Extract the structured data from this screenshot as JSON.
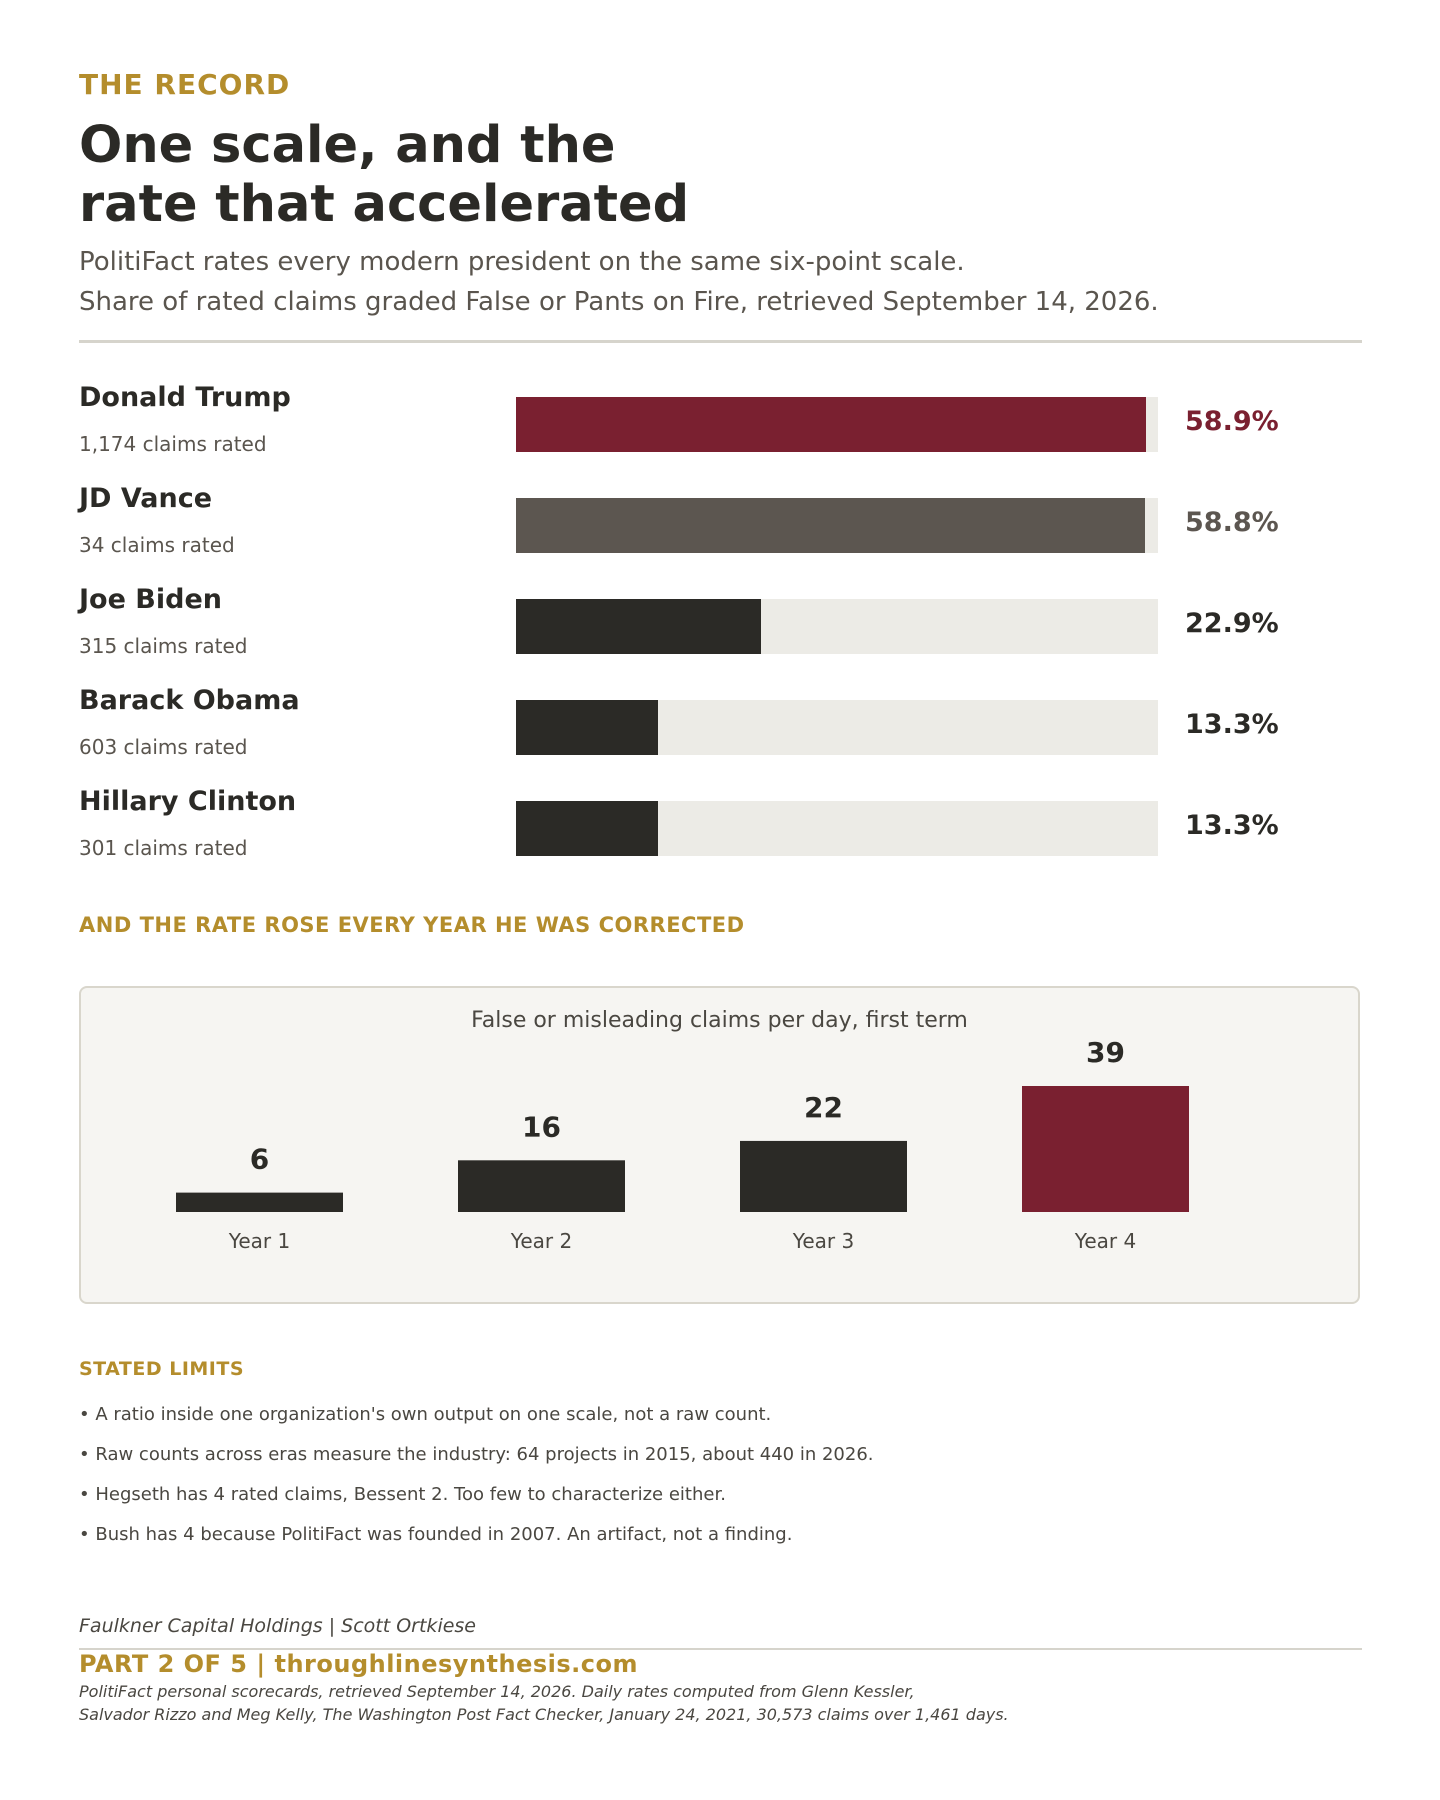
{
  "header": {
    "kicker": "THE RECORD",
    "title_line1": "One scale, and the",
    "title_line2": "rate that accelerated",
    "subtitle_line1": "PolitiFact rates every modern president on the same six-point scale.",
    "subtitle_line2": "Share of rated claims graded False or Pants on Fire, retrieved September 14, 2026."
  },
  "colors": {
    "accent_red": "#7a2030",
    "gray_bar": "#5c5650",
    "dark_bar": "#2b2a26",
    "track": "#ecebe6",
    "gold": "#b48d2c"
  },
  "chart_data": [
    {
      "type": "bar",
      "orientation": "horizontal",
      "title": "",
      "xlim": [
        0,
        60
      ],
      "categories": [
        "Donald Trump",
        "JD Vance",
        "Joe Biden",
        "Barack Obama",
        "Hillary Clinton"
      ],
      "values": [
        58.9,
        58.8,
        22.9,
        13.3,
        13.3
      ],
      "value_labels": [
        "58.9%",
        "58.8%",
        "22.9%",
        "13.3%",
        "13.3%"
      ],
      "sublabels": [
        "1,174 claims rated",
        "34 claims rated",
        "315 claims rated",
        "603 claims rated",
        "301 claims rated"
      ],
      "bar_colors": [
        "#7a2030",
        "#5c5650",
        "#2b2a26",
        "#2b2a26",
        "#2b2a26"
      ],
      "label_colors": [
        "#7a2030",
        "#5c5650",
        "#2b2a26",
        "#2b2a26",
        "#2b2a26"
      ]
    },
    {
      "type": "bar",
      "title": "False or misleading claims per day, first term",
      "categories": [
        "Year 1",
        "Year 2",
        "Year 3",
        "Year 4"
      ],
      "values": [
        6,
        16,
        22,
        39
      ],
      "ylim": [
        0,
        39
      ],
      "bar_colors": [
        "#2b2a26",
        "#2b2a26",
        "#2b2a26",
        "#7a2030"
      ],
      "grid": false
    }
  ],
  "section": {
    "heading": "AND THE RATE ROSE EVERY YEAR HE WAS CORRECTED"
  },
  "limits": {
    "heading": "STATED LIMITS",
    "items": [
      "• A ratio inside one organization's own output on one scale, not a raw count.",
      "• Raw counts across eras measure the industry: 64 projects in 2015, about 440 in 2026.",
      "• Hegseth has 4 rated claims, Bessent 2. Too few to characterize either.",
      "• Bush has 4 because PolitiFact was founded in 2007. An artifact, not a finding."
    ]
  },
  "footer": {
    "credit": "Faulkner Capital Holdings  |  Scott Ortkiese",
    "part": "PART 2 OF 5  |  throughlinesynthesis.com",
    "source_line1": "PolitiFact personal scorecards, retrieved September 14, 2026. Daily rates computed from Glenn Kessler,",
    "source_line2": "Salvador Rizzo and Meg Kelly, The Washington Post Fact Checker, January 24, 2021, 30,573 claims over 1,461 days."
  }
}
